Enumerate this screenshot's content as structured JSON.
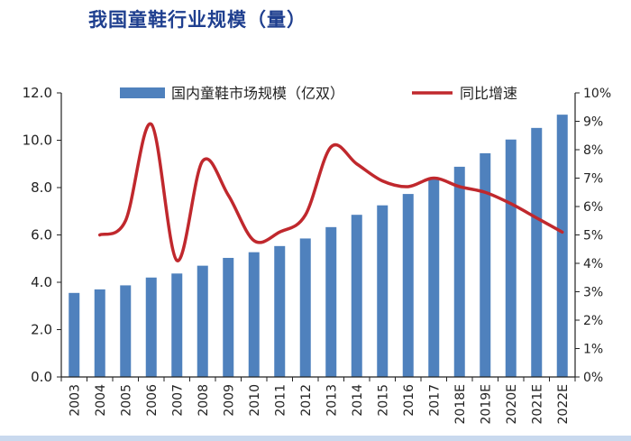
{
  "page": {
    "title": "我国童鞋行业规模（量）"
  },
  "colors": {
    "bar": "#4f81bd",
    "line": "#c0282d",
    "title": "#1f3f8f",
    "axis": "#222222"
  },
  "chart_data": {
    "type": "bar",
    "title": "我国童鞋行业规模（量）",
    "categories": [
      "2003",
      "2004",
      "2005",
      "2006",
      "2007",
      "2008",
      "2009",
      "2010",
      "2011",
      "2012",
      "2013",
      "2014",
      "2015",
      "2016",
      "2017",
      "2018E",
      "2019E",
      "2020E",
      "2021E",
      "2022E"
    ],
    "series": [
      {
        "name": "国内童鞋市场规模（亿双）",
        "type": "bar",
        "axis": "left",
        "values": [
          3.55,
          3.7,
          3.87,
          4.2,
          4.37,
          4.7,
          5.03,
          5.27,
          5.53,
          5.85,
          6.33,
          6.85,
          7.25,
          7.73,
          8.38,
          8.88,
          9.45,
          10.03,
          10.52,
          11.08
        ]
      },
      {
        "name": "同比增速",
        "type": "line",
        "axis": "right",
        "values": [
          null,
          0.05,
          0.055,
          0.089,
          0.041,
          0.076,
          0.064,
          0.048,
          0.051,
          0.057,
          0.081,
          0.075,
          0.069,
          0.067,
          0.07,
          0.067,
          0.065,
          0.061,
          0.056,
          0.051
        ]
      }
    ],
    "y_left": {
      "min": 0,
      "max": 12,
      "ticks": [
        "0.0",
        "2.0",
        "4.0",
        "6.0",
        "8.0",
        "10.0",
        "12.0"
      ]
    },
    "y_right": {
      "min": 0,
      "max": 0.1,
      "ticks": [
        "0%",
        "1%",
        "2%",
        "3%",
        "4%",
        "5%",
        "6%",
        "7%",
        "8%",
        "9%",
        "10%"
      ]
    },
    "legend_position": "top",
    "grid": false
  }
}
